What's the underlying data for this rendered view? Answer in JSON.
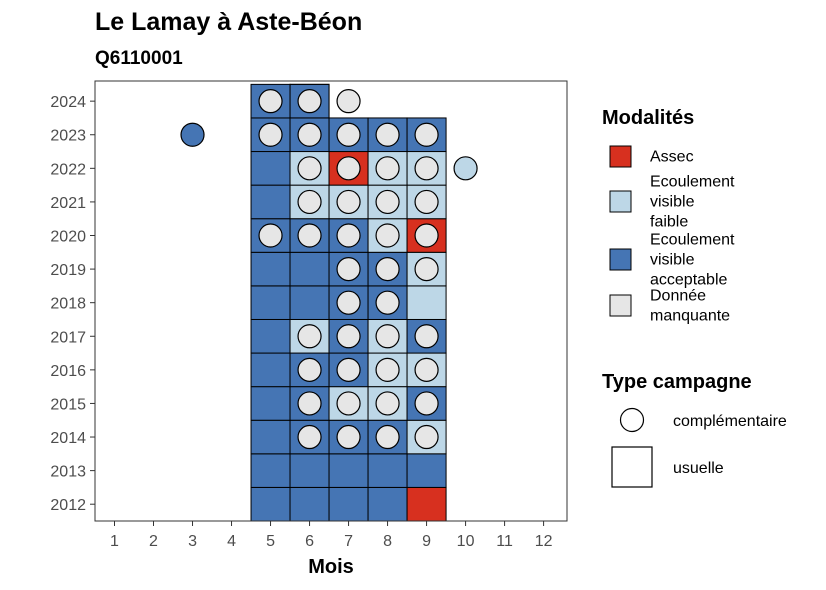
{
  "chart_data": {
    "type": "heatmap",
    "title": "Le Lamay à Aste-Béon",
    "subtitle": "Q6110001",
    "xlabel": "Mois",
    "ylabel": "",
    "x_ticks": [
      "1",
      "2",
      "3",
      "4",
      "5",
      "6",
      "7",
      "8",
      "9",
      "10",
      "11",
      "12"
    ],
    "y_ticks": [
      "2012",
      "2013",
      "2014",
      "2015",
      "2016",
      "2017",
      "2018",
      "2019",
      "2020",
      "2021",
      "2022",
      "2023",
      "2024"
    ],
    "xlim": [
      0.5,
      12.6
    ],
    "ylim": [
      2011.5,
      2024.6
    ],
    "grid": false,
    "colors": {
      "assec": "#d7301f",
      "faible": "#bdd7e7",
      "acceptable": "#4575b4",
      "manquante": "#e6e6e6"
    },
    "legend_modalites": {
      "title": "Modalités",
      "items": [
        {
          "key": "assec",
          "label": "Assec"
        },
        {
          "key": "faible",
          "label": "Ecoulement visible faible"
        },
        {
          "key": "acceptable",
          "label": "Ecoulement visible acceptable"
        },
        {
          "key": "manquante",
          "label": "Donnée manquante"
        }
      ]
    },
    "legend_campagne": {
      "title": "Type campagne",
      "items": [
        {
          "key": "complementaire",
          "label": "complémentaire"
        },
        {
          "key": "usuelle",
          "label": "usuelle"
        }
      ]
    },
    "usuelle": [
      {
        "year": 2012,
        "month": 5,
        "mod": "acceptable"
      },
      {
        "year": 2012,
        "month": 6,
        "mod": "acceptable"
      },
      {
        "year": 2012,
        "month": 7,
        "mod": "acceptable"
      },
      {
        "year": 2012,
        "month": 8,
        "mod": "acceptable"
      },
      {
        "year": 2012,
        "month": 9,
        "mod": "assec"
      },
      {
        "year": 2013,
        "month": 5,
        "mod": "acceptable"
      },
      {
        "year": 2013,
        "month": 6,
        "mod": "acceptable"
      },
      {
        "year": 2013,
        "month": 7,
        "mod": "acceptable"
      },
      {
        "year": 2013,
        "month": 8,
        "mod": "acceptable"
      },
      {
        "year": 2013,
        "month": 9,
        "mod": "acceptable"
      },
      {
        "year": 2014,
        "month": 5,
        "mod": "acceptable"
      },
      {
        "year": 2014,
        "month": 6,
        "mod": "acceptable"
      },
      {
        "year": 2014,
        "month": 7,
        "mod": "acceptable"
      },
      {
        "year": 2014,
        "month": 8,
        "mod": "acceptable"
      },
      {
        "year": 2014,
        "month": 9,
        "mod": "faible"
      },
      {
        "year": 2015,
        "month": 5,
        "mod": "acceptable"
      },
      {
        "year": 2015,
        "month": 6,
        "mod": "acceptable"
      },
      {
        "year": 2015,
        "month": 7,
        "mod": "faible"
      },
      {
        "year": 2015,
        "month": 8,
        "mod": "faible"
      },
      {
        "year": 2015,
        "month": 9,
        "mod": "acceptable"
      },
      {
        "year": 2016,
        "month": 5,
        "mod": "acceptable"
      },
      {
        "year": 2016,
        "month": 6,
        "mod": "acceptable"
      },
      {
        "year": 2016,
        "month": 7,
        "mod": "acceptable"
      },
      {
        "year": 2016,
        "month": 8,
        "mod": "faible"
      },
      {
        "year": 2016,
        "month": 9,
        "mod": "faible"
      },
      {
        "year": 2017,
        "month": 5,
        "mod": "acceptable"
      },
      {
        "year": 2017,
        "month": 6,
        "mod": "faible"
      },
      {
        "year": 2017,
        "month": 7,
        "mod": "acceptable"
      },
      {
        "year": 2017,
        "month": 8,
        "mod": "faible"
      },
      {
        "year": 2017,
        "month": 9,
        "mod": "acceptable"
      },
      {
        "year": 2018,
        "month": 5,
        "mod": "acceptable"
      },
      {
        "year": 2018,
        "month": 6,
        "mod": "acceptable"
      },
      {
        "year": 2018,
        "month": 7,
        "mod": "acceptable"
      },
      {
        "year": 2018,
        "month": 8,
        "mod": "acceptable"
      },
      {
        "year": 2018,
        "month": 9,
        "mod": "faible"
      },
      {
        "year": 2019,
        "month": 5,
        "mod": "acceptable"
      },
      {
        "year": 2019,
        "month": 6,
        "mod": "acceptable"
      },
      {
        "year": 2019,
        "month": 7,
        "mod": "acceptable"
      },
      {
        "year": 2019,
        "month": 8,
        "mod": "acceptable"
      },
      {
        "year": 2019,
        "month": 9,
        "mod": "faible"
      },
      {
        "year": 2020,
        "month": 5,
        "mod": "acceptable"
      },
      {
        "year": 2020,
        "month": 6,
        "mod": "acceptable"
      },
      {
        "year": 2020,
        "month": 7,
        "mod": "acceptable"
      },
      {
        "year": 2020,
        "month": 8,
        "mod": "faible"
      },
      {
        "year": 2020,
        "month": 9,
        "mod": "assec"
      },
      {
        "year": 2021,
        "month": 5,
        "mod": "acceptable"
      },
      {
        "year": 2021,
        "month": 6,
        "mod": "faible"
      },
      {
        "year": 2021,
        "month": 7,
        "mod": "faible"
      },
      {
        "year": 2021,
        "month": 8,
        "mod": "faible"
      },
      {
        "year": 2021,
        "month": 9,
        "mod": "faible"
      },
      {
        "year": 2022,
        "month": 5,
        "mod": "acceptable"
      },
      {
        "year": 2022,
        "month": 6,
        "mod": "faible"
      },
      {
        "year": 2022,
        "month": 7,
        "mod": "assec"
      },
      {
        "year": 2022,
        "month": 8,
        "mod": "faible"
      },
      {
        "year": 2022,
        "month": 9,
        "mod": "faible"
      },
      {
        "year": 2023,
        "month": 5,
        "mod": "acceptable"
      },
      {
        "year": 2023,
        "month": 6,
        "mod": "acceptable"
      },
      {
        "year": 2023,
        "month": 7,
        "mod": "acceptable"
      },
      {
        "year": 2023,
        "month": 8,
        "mod": "acceptable"
      },
      {
        "year": 2023,
        "month": 9,
        "mod": "acceptable"
      },
      {
        "year": 2024,
        "month": 5,
        "mod": "acceptable"
      },
      {
        "year": 2024,
        "month": 6,
        "mod": "acceptable"
      }
    ],
    "complementaire": [
      {
        "year": 2014,
        "month": 6,
        "mod": "manquante"
      },
      {
        "year": 2014,
        "month": 7,
        "mod": "manquante"
      },
      {
        "year": 2014,
        "month": 8,
        "mod": "manquante"
      },
      {
        "year": 2014,
        "month": 9,
        "mod": "manquante"
      },
      {
        "year": 2015,
        "month": 6,
        "mod": "manquante"
      },
      {
        "year": 2015,
        "month": 7,
        "mod": "manquante"
      },
      {
        "year": 2015,
        "month": 8,
        "mod": "manquante"
      },
      {
        "year": 2015,
        "month": 9,
        "mod": "manquante"
      },
      {
        "year": 2016,
        "month": 6,
        "mod": "manquante"
      },
      {
        "year": 2016,
        "month": 7,
        "mod": "manquante"
      },
      {
        "year": 2016,
        "month": 8,
        "mod": "manquante"
      },
      {
        "year": 2016,
        "month": 9,
        "mod": "manquante"
      },
      {
        "year": 2017,
        "month": 6,
        "mod": "manquante"
      },
      {
        "year": 2017,
        "month": 7,
        "mod": "manquante"
      },
      {
        "year": 2017,
        "month": 8,
        "mod": "manquante"
      },
      {
        "year": 2017,
        "month": 9,
        "mod": "manquante"
      },
      {
        "year": 2018,
        "month": 7,
        "mod": "manquante"
      },
      {
        "year": 2018,
        "month": 8,
        "mod": "manquante"
      },
      {
        "year": 2019,
        "month": 7,
        "mod": "manquante"
      },
      {
        "year": 2019,
        "month": 8,
        "mod": "manquante"
      },
      {
        "year": 2019,
        "month": 9,
        "mod": "manquante"
      },
      {
        "year": 2020,
        "month": 5,
        "mod": "manquante"
      },
      {
        "year": 2020,
        "month": 6,
        "mod": "manquante"
      },
      {
        "year": 2020,
        "month": 7,
        "mod": "manquante"
      },
      {
        "year": 2020,
        "month": 8,
        "mod": "manquante"
      },
      {
        "year": 2020,
        "month": 9,
        "mod": "manquante"
      },
      {
        "year": 2021,
        "month": 6,
        "mod": "manquante"
      },
      {
        "year": 2021,
        "month": 7,
        "mod": "manquante"
      },
      {
        "year": 2021,
        "month": 8,
        "mod": "manquante"
      },
      {
        "year": 2021,
        "month": 9,
        "mod": "manquante"
      },
      {
        "year": 2022,
        "month": 6,
        "mod": "manquante"
      },
      {
        "year": 2022,
        "month": 7,
        "mod": "manquante"
      },
      {
        "year": 2022,
        "month": 8,
        "mod": "manquante"
      },
      {
        "year": 2022,
        "month": 9,
        "mod": "manquante"
      },
      {
        "year": 2022,
        "month": 10,
        "mod": "faible"
      },
      {
        "year": 2023,
        "month": 3,
        "mod": "acceptable"
      },
      {
        "year": 2023,
        "month": 5,
        "mod": "manquante"
      },
      {
        "year": 2023,
        "month": 6,
        "mod": "manquante"
      },
      {
        "year": 2023,
        "month": 7,
        "mod": "manquante"
      },
      {
        "year": 2023,
        "month": 8,
        "mod": "manquante"
      },
      {
        "year": 2023,
        "month": 9,
        "mod": "manquante"
      },
      {
        "year": 2024,
        "month": 5,
        "mod": "manquante"
      },
      {
        "year": 2024,
        "month": 6,
        "mod": "manquante"
      },
      {
        "year": 2024,
        "month": 7,
        "mod": "manquante"
      }
    ],
    "empty_usuelle": [
      {
        "year": 2024,
        "month": 6
      }
    ]
  }
}
